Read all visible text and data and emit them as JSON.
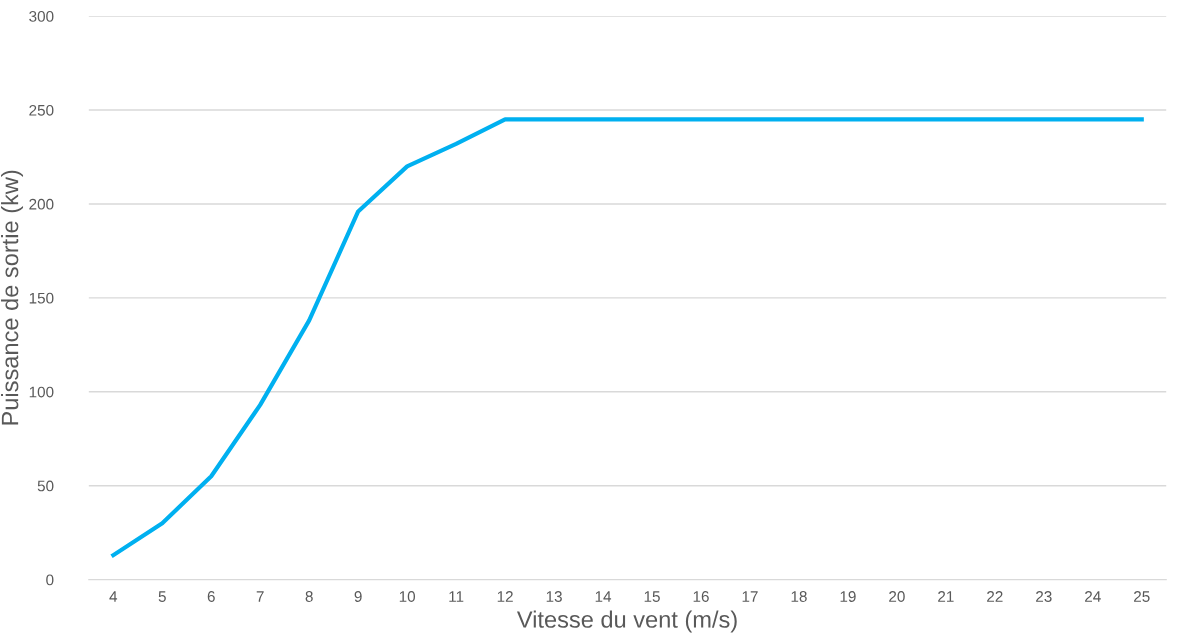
{
  "chart_data": {
    "type": "line",
    "xlabel": "Vitesse du vent (m/s)",
    "ylabel": "Puissance de sortie (kw)",
    "categories": [
      "4",
      "5",
      "6",
      "7",
      "8",
      "9",
      "10",
      "11",
      "12",
      "13",
      "14",
      "15",
      "16",
      "17",
      "18",
      "19",
      "20",
      "21",
      "22",
      "23",
      "24",
      "25"
    ],
    "series": [
      {
        "color": "#00b0f0",
        "values": [
          13,
          30,
          55,
          93,
          138,
          196,
          220,
          232,
          245,
          245,
          245,
          245,
          245,
          245,
          245,
          245,
          245,
          245,
          245,
          245,
          245,
          245
        ]
      }
    ],
    "ylim": [
      0,
      300
    ],
    "yticks": [
      0,
      50,
      100,
      150,
      200,
      250,
      300
    ],
    "grid": "y",
    "legend": false,
    "marker": "none",
    "line_style": "solid"
  }
}
